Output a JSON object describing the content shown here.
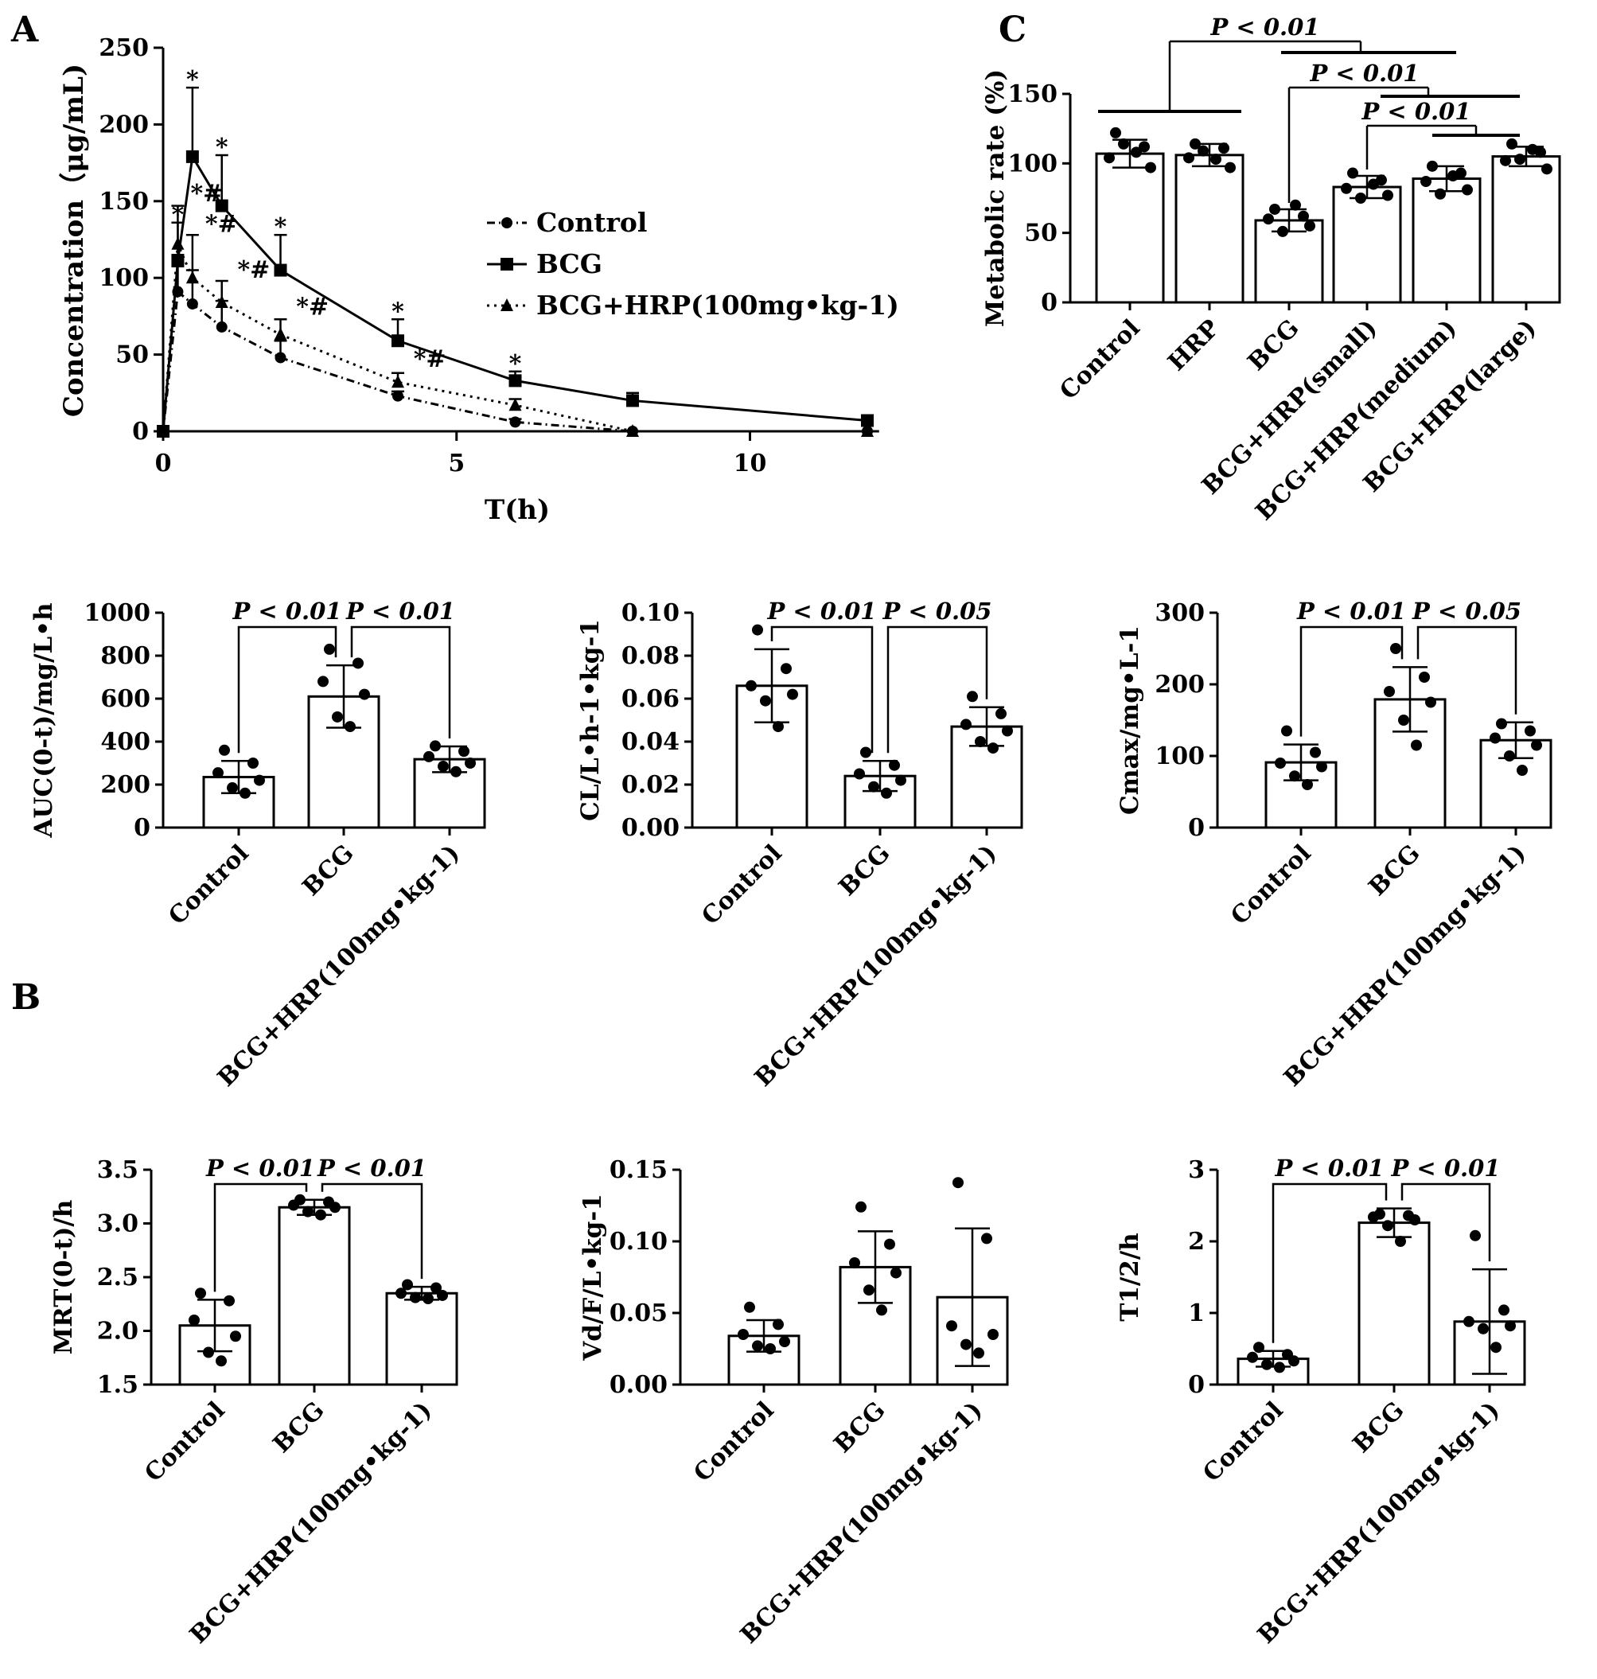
{
  "panel_labels": {
    "a": "A",
    "b": "B",
    "c": "C"
  },
  "chart_data": [
    {
      "id": "pk",
      "type": "line",
      "panel": "A",
      "xlabel": "T(h)",
      "ylabel": "Concentration（μg/mL)",
      "xlim": [
        0,
        12.5
      ],
      "ylim": [
        0,
        250
      ],
      "xticks": [
        "0",
        "5",
        "10"
      ],
      "yticks": [
        "0",
        "50",
        "100",
        "150",
        "200",
        "250"
      ],
      "series": [
        {
          "name": "Control",
          "marker": "circle",
          "dash": "10,5,2,5",
          "x": [
            0,
            0.25,
            0.5,
            1,
            2,
            4,
            6,
            8,
            12
          ],
          "y": [
            0,
            91,
            83,
            68,
            48,
            23,
            6,
            0,
            0
          ],
          "err": [
            0,
            24,
            22,
            17,
            11,
            3,
            2,
            0,
            0
          ]
        },
        {
          "name": "BCG",
          "marker": "square",
          "dash": "",
          "x": [
            0,
            0.25,
            0.5,
            1,
            2,
            4,
            6,
            8,
            12
          ],
          "y": [
            0,
            111,
            179,
            147,
            105,
            59,
            33,
            20,
            7
          ],
          "err": [
            0,
            25,
            45,
            33,
            23,
            14,
            6,
            5,
            2
          ]
        },
        {
          "name": "BCG+HRP(100mg•kg-1)",
          "marker": "triangle",
          "dash": "3,6",
          "x": [
            0,
            0.25,
            0.5,
            1,
            2,
            4,
            6,
            8,
            12
          ],
          "y": [
            0,
            122,
            100,
            84,
            63,
            32,
            17,
            0,
            0
          ],
          "err": [
            0,
            25,
            28,
            14,
            10,
            6,
            4,
            0,
            0
          ]
        }
      ],
      "annotations": [
        {
          "x": 0.25,
          "y": 136,
          "text": "*"
        },
        {
          "x": 0.5,
          "y": 224,
          "text": "*"
        },
        {
          "x": 1,
          "y": 180,
          "text": "*"
        },
        {
          "x": 2,
          "y": 128,
          "text": "*"
        },
        {
          "x": 4,
          "y": 73,
          "text": "*"
        },
        {
          "x": 6,
          "y": 39,
          "text": "*"
        },
        {
          "x": 0.5,
          "y": 150,
          "text": "*#"
        },
        {
          "x": 0.75,
          "y": 130,
          "text": "*#"
        },
        {
          "x": 1.3,
          "y": 100,
          "text": "*#"
        },
        {
          "x": 2.3,
          "y": 76,
          "text": "*#"
        },
        {
          "x": 4.3,
          "y": 42,
          "text": "*#"
        }
      ]
    },
    {
      "id": "metabolic",
      "type": "bar",
      "panel": "C",
      "ylabel": "Metabolic rate (%)",
      "ylim": [
        0,
        150
      ],
      "yticks": [
        "0",
        "50",
        "100",
        "150"
      ],
      "categories": [
        "Control",
        "HRP",
        "BCG",
        "BCG+HRP(small)",
        "BCG+HRP(medium)",
        "BCG+HRP(large)"
      ],
      "values": [
        107,
        106,
        59,
        83,
        89,
        105
      ],
      "errors": [
        10,
        8,
        8,
        8,
        9,
        7
      ],
      "points": [
        [
          122,
          112,
          104,
          97,
          114,
          108
        ],
        [
          114,
          111,
          104,
          97,
          109,
          103
        ],
        [
          67,
          62,
          60,
          55,
          51,
          70
        ],
        [
          93,
          88,
          82,
          77,
          75,
          85
        ],
        [
          98,
          93,
          87,
          81,
          78,
          91
        ],
        [
          114,
          108,
          102,
          96,
          103,
          110
        ]
      ],
      "comparisons": [
        {
          "from": 0,
          "to": 1,
          "text": "P < 0.01"
        },
        {
          "from": 2,
          "to": 5,
          "text": "P < 0.01"
        },
        {
          "from": 3,
          "to": 5,
          "text": "P < 0.01"
        }
      ]
    },
    {
      "id": "auc",
      "type": "bar",
      "panel": "B",
      "ylabel": "AUC(0-t)/mg/L•h",
      "ylim": [
        0,
        1000
      ],
      "yticks": [
        "0",
        "200",
        "400",
        "600",
        "800",
        "1000"
      ],
      "categories": [
        "Control",
        "BCG",
        "BCG+HRP(100mg•kg-1)"
      ],
      "values": [
        235,
        610,
        318
      ],
      "errors": [
        75,
        145,
        60
      ],
      "points": [
        [
          360,
          300,
          255,
          220,
          185,
          160
        ],
        [
          830,
          765,
          680,
          620,
          515,
          470
        ],
        [
          380,
          355,
          330,
          300,
          285,
          260
        ]
      ],
      "comparisons": [
        {
          "from": 0,
          "to": 1,
          "text": "P < 0.01"
        },
        {
          "from": 1,
          "to": 2,
          "text": "P < 0.01"
        }
      ]
    },
    {
      "id": "cl",
      "type": "bar",
      "panel": "B",
      "ylabel": "CL/L•h-1•kg-1",
      "ylim": [
        0,
        0.1
      ],
      "yticks": [
        "0.00",
        "0.02",
        "0.04",
        "0.06",
        "0.08",
        "0.10"
      ],
      "categories": [
        "Control",
        "BCG",
        "BCG+HRP(100mg•kg-1)"
      ],
      "values": [
        0.066,
        0.024,
        0.047
      ],
      "errors": [
        0.017,
        0.007,
        0.009
      ],
      "points": [
        [
          0.092,
          0.074,
          0.066,
          0.062,
          0.059,
          0.047
        ],
        [
          0.035,
          0.029,
          0.025,
          0.022,
          0.019,
          0.016
        ],
        [
          0.061,
          0.053,
          0.048,
          0.045,
          0.04,
          0.037
        ]
      ],
      "comparisons": [
        {
          "from": 0,
          "to": 1,
          "text": "P < 0.01"
        },
        {
          "from": 1,
          "to": 2,
          "text": "P < 0.05"
        }
      ]
    },
    {
      "id": "cmax",
      "type": "bar",
      "panel": "B",
      "ylabel": "Cmax/mg•L-1",
      "ylim": [
        0,
        300
      ],
      "yticks": [
        "0",
        "100",
        "200",
        "300"
      ],
      "categories": [
        "Control",
        "BCG",
        "BCG+HRP(100mg•kg-1)"
      ],
      "values": [
        91,
        179,
        122
      ],
      "errors": [
        25,
        45,
        25
      ],
      "points": [
        [
          135,
          105,
          90,
          85,
          72,
          60
        ],
        [
          250,
          210,
          190,
          175,
          150,
          115
        ],
        [
          145,
          135,
          125,
          115,
          100,
          80
        ]
      ],
      "comparisons": [
        {
          "from": 0,
          "to": 1,
          "text": "P < 0.01"
        },
        {
          "from": 1,
          "to": 2,
          "text": "P < 0.05"
        }
      ]
    },
    {
      "id": "mrt",
      "type": "bar",
      "panel": "B",
      "ylabel": "MRT(0-t)/h",
      "ylim": [
        1.5,
        3.5
      ],
      "yticks": [
        "1.5",
        "2.0",
        "2.5",
        "3.0",
        "3.5"
      ],
      "categories": [
        "Control",
        "BCG",
        "BCG+HRP(100mg•kg-1)"
      ],
      "values": [
        2.05,
        3.15,
        2.35
      ],
      "errors": [
        0.24,
        0.07,
        0.06
      ],
      "points": [
        [
          2.35,
          2.28,
          2.1,
          1.95,
          1.8,
          1.72
        ],
        [
          3.22,
          3.2,
          3.17,
          3.15,
          3.11,
          3.08
        ],
        [
          2.43,
          2.4,
          2.35,
          2.33,
          2.31,
          2.3
        ]
      ],
      "comparisons": [
        {
          "from": 0,
          "to": 1,
          "text": "P < 0.01"
        },
        {
          "from": 1,
          "to": 2,
          "text": "P < 0.01"
        }
      ]
    },
    {
      "id": "vd",
      "type": "bar",
      "panel": "B",
      "ylabel": "Vd/F/L•kg-1",
      "ylim": [
        0,
        0.15
      ],
      "yticks": [
        "0.00",
        "0.05",
        "0.10",
        "0.15"
      ],
      "categories": [
        "Control",
        "BCG",
        "BCG+HRP(100mg•kg-1)"
      ],
      "values": [
        0.034,
        0.082,
        0.061
      ],
      "errors": [
        0.011,
        0.025,
        0.048
      ],
      "points": [
        [
          0.054,
          0.042,
          0.035,
          0.03,
          0.027,
          0.025
        ],
        [
          0.124,
          0.098,
          0.085,
          0.078,
          0.066,
          0.052
        ],
        [
          0.141,
          0.102,
          0.041,
          0.035,
          0.028,
          0.022
        ]
      ],
      "comparisons": []
    },
    {
      "id": "t12",
      "type": "bar",
      "panel": "B",
      "ylabel": "T1/2/h",
      "ylim": [
        0,
        3
      ],
      "yticks": [
        "0",
        "1",
        "2",
        "3"
      ],
      "categories": [
        "Control",
        "BCG",
        "BCG+HRP(100mg•kg-1)"
      ],
      "values": [
        0.36,
        2.26,
        0.88
      ],
      "errors": [
        0.11,
        0.2,
        0.73
      ],
      "points": [
        [
          0.52,
          0.42,
          0.38,
          0.33,
          0.28,
          0.24
        ],
        [
          2.38,
          2.36,
          2.34,
          2.3,
          2.22,
          2.0
        ],
        [
          2.08,
          1.04,
          0.88,
          0.82,
          0.78,
          0.52
        ]
      ],
      "comparisons": [
        {
          "from": 0,
          "to": 1,
          "text": "P < 0.01"
        },
        {
          "from": 1,
          "to": 2,
          "text": "P < 0.01"
        }
      ]
    }
  ]
}
